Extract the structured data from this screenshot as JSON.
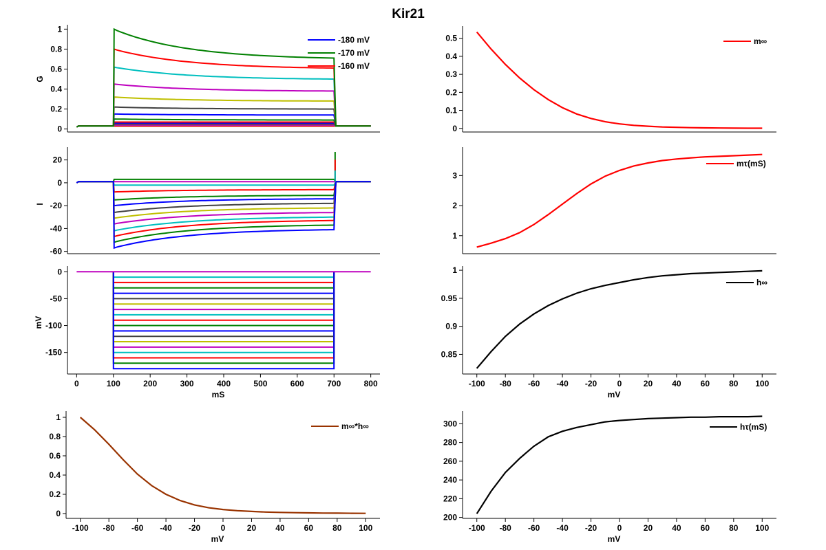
{
  "figure_title": "Kir21",
  "chart_data": [
    {
      "id": "G",
      "type": "line",
      "title": "",
      "xlabel": "",
      "ylabel": "G",
      "xlim": [
        -25,
        825
      ],
      "ylim": [
        -0.03,
        1.03
      ],
      "yticks": [
        0,
        0.2,
        0.4,
        0.6,
        0.8,
        1
      ],
      "ytick_labels": [
        "0",
        "0.2",
        "0.4",
        "0.6",
        "0.8",
        "1"
      ],
      "xticks": [],
      "grid": false,
      "legend": {
        "position": "top-right",
        "entries": [
          {
            "label": "-180 mV",
            "color": "#0000ff"
          },
          {
            "label": "-170 mV",
            "color": "#008000"
          },
          {
            "label": "-160 mV",
            "color": "#ff0000"
          }
        ]
      },
      "baseline": 0.03,
      "step_start_ms": 100,
      "step_end_ms": 700,
      "sweeps": [
        {
          "color": "#0000ff",
          "peak": 0.03,
          "end": 0.03
        },
        {
          "color": "#008000",
          "peak": 0.03,
          "end": 0.03
        },
        {
          "color": "#ff0000",
          "peak": 0.03,
          "end": 0.03
        },
        {
          "color": "#00bfbf",
          "peak": 0.04,
          "end": 0.04
        },
        {
          "color": "#bf00bf",
          "peak": 0.04,
          "end": 0.04
        },
        {
          "color": "#bfbf00",
          "peak": 0.05,
          "end": 0.05
        },
        {
          "color": "#404040",
          "peak": 0.05,
          "end": 0.05
        },
        {
          "color": "#0000ff",
          "peak": 0.06,
          "end": 0.06
        },
        {
          "color": "#ff0000",
          "peak": 0.07,
          "end": 0.07
        },
        {
          "color": "#008000",
          "peak": 0.1,
          "end": 0.09
        },
        {
          "color": "#0000ff",
          "peak": 0.15,
          "end": 0.14
        },
        {
          "color": "#404040",
          "peak": 0.22,
          "end": 0.2
        },
        {
          "color": "#bfbf00",
          "peak": 0.32,
          "end": 0.28
        },
        {
          "color": "#bf00bf",
          "peak": 0.45,
          "end": 0.38
        },
        {
          "color": "#00bfbf",
          "peak": 0.62,
          "end": 0.5
        },
        {
          "color": "#ff0000",
          "peak": 0.8,
          "end": 0.61
        },
        {
          "color": "#008000",
          "peak": 1.0,
          "end": 0.71
        }
      ]
    },
    {
      "id": "I",
      "type": "line",
      "xlabel": "",
      "ylabel": "I",
      "xlim": [
        -25,
        825
      ],
      "ylim": [
        -62,
        30
      ],
      "yticks": [
        -60,
        -40,
        -20,
        0,
        20
      ],
      "ytick_labels": [
        "-60",
        "-40",
        "-20",
        "0",
        "20"
      ],
      "xticks": [],
      "grid": false,
      "baseline": 1,
      "step_start_ms": 100,
      "step_end_ms": 700,
      "tail_spike_max": 27,
      "sweeps": [
        {
          "color": "#008000",
          "peak": 3,
          "end": 3
        },
        {
          "color": "#bf00bf",
          "peak": 1,
          "end": 1
        },
        {
          "color": "#00bfbf",
          "peak": -2,
          "end": -2
        },
        {
          "color": "#ff0000",
          "peak": -8,
          "end": -6
        },
        {
          "color": "#008000",
          "peak": -15,
          "end": -11
        },
        {
          "color": "#0000ff",
          "peak": -20,
          "end": -14
        },
        {
          "color": "#404040",
          "peak": -26,
          "end": -18
        },
        {
          "color": "#bfbf00",
          "peak": -31,
          "end": -22
        },
        {
          "color": "#bf00bf",
          "peak": -36,
          "end": -26
        },
        {
          "color": "#00bfbf",
          "peak": -42,
          "end": -30
        },
        {
          "color": "#ff0000",
          "peak": -47,
          "end": -33
        },
        {
          "color": "#008000",
          "peak": -52,
          "end": -37
        },
        {
          "color": "#0000ff",
          "peak": -57,
          "end": -41
        }
      ]
    },
    {
      "id": "V",
      "type": "line",
      "xlabel": "mS",
      "ylabel": "mV",
      "xlim": [
        -25,
        825
      ],
      "ylim": [
        -190,
        8
      ],
      "yticks": [
        -150,
        -100,
        -50,
        0
      ],
      "ytick_labels": [
        "-150",
        "-100",
        "-50",
        "0"
      ],
      "xticks": [
        0,
        100,
        200,
        300,
        400,
        500,
        600,
        700,
        800
      ],
      "xtick_labels": [
        "0",
        "100",
        "200",
        "300",
        "400",
        "500",
        "600",
        "700",
        "800"
      ],
      "grid": false,
      "holding": 0,
      "step_start_ms": 100,
      "step_end_ms": 700,
      "sim_end_ms": 800,
      "steps": [
        {
          "v": -10,
          "color": "#00bfbf"
        },
        {
          "v": -20,
          "color": "#ff0000"
        },
        {
          "v": -30,
          "color": "#008000"
        },
        {
          "v": -40,
          "color": "#0000ff"
        },
        {
          "v": -50,
          "color": "#404040"
        },
        {
          "v": -60,
          "color": "#bfbf00"
        },
        {
          "v": -70,
          "color": "#bf00bf"
        },
        {
          "v": -80,
          "color": "#00bfbf"
        },
        {
          "v": -90,
          "color": "#ff0000"
        },
        {
          "v": -100,
          "color": "#008000"
        },
        {
          "v": -110,
          "color": "#0000ff"
        },
        {
          "v": -120,
          "color": "#404040"
        },
        {
          "v": -130,
          "color": "#bfbf00"
        },
        {
          "v": -140,
          "color": "#bf00bf"
        },
        {
          "v": -150,
          "color": "#00bfbf"
        },
        {
          "v": -160,
          "color": "#ff0000"
        },
        {
          "v": -170,
          "color": "#008000"
        },
        {
          "v": -180,
          "color": "#0000ff"
        }
      ],
      "holding_color": "#bf00bf"
    },
    {
      "id": "minf_hinf",
      "type": "line",
      "xlabel": "mV",
      "ylabel": "",
      "xlim": [
        -110,
        110
      ],
      "ylim": [
        -0.05,
        1.05
      ],
      "yticks": [
        0,
        0.2,
        0.4,
        0.6,
        0.8,
        1
      ],
      "ytick_labels": [
        "0",
        "0.2",
        "0.4",
        "0.6",
        "0.8",
        "1"
      ],
      "xticks": [
        -100,
        -80,
        -60,
        -40,
        -20,
        0,
        20,
        40,
        60,
        80,
        100
      ],
      "xtick_labels": [
        "-100",
        "-80",
        "-60",
        "-40",
        "-20",
        "0",
        "20",
        "40",
        "60",
        "80",
        "100"
      ],
      "grid": false,
      "legend": {
        "position": "top-right",
        "entries": [
          {
            "label": "m∞*h∞",
            "color": "#993300"
          }
        ]
      },
      "x": [
        -100,
        -90,
        -80,
        -70,
        -60,
        -50,
        -40,
        -30,
        -20,
        -10,
        0,
        10,
        20,
        30,
        40,
        50,
        60,
        70,
        80,
        90,
        100
      ],
      "y": [
        1.0,
        0.87,
        0.72,
        0.56,
        0.41,
        0.29,
        0.2,
        0.135,
        0.09,
        0.06,
        0.042,
        0.03,
        0.022,
        0.016,
        0.012,
        0.009,
        0.007,
        0.005,
        0.004,
        0.003,
        0.002
      ]
    },
    {
      "id": "minf",
      "type": "line",
      "xlabel": "",
      "ylabel": "",
      "xlim": [
        -110,
        110
      ],
      "ylim": [
        -0.02,
        0.56
      ],
      "yticks": [
        0,
        0.1,
        0.2,
        0.3,
        0.4,
        0.5
      ],
      "ytick_labels": [
        "0",
        "0.1",
        "0.2",
        "0.3",
        "0.4",
        "0.5"
      ],
      "xticks": [],
      "grid": false,
      "legend": {
        "position": "top-right",
        "entries": [
          {
            "label": "m∞",
            "color": "#ff0000"
          }
        ]
      },
      "x": [
        -100,
        -90,
        -80,
        -70,
        -60,
        -50,
        -40,
        -30,
        -20,
        -10,
        0,
        10,
        20,
        30,
        40,
        50,
        60,
        70,
        80,
        90,
        100
      ],
      "y": [
        0.535,
        0.44,
        0.355,
        0.28,
        0.215,
        0.16,
        0.115,
        0.08,
        0.055,
        0.037,
        0.025,
        0.017,
        0.012,
        0.008,
        0.006,
        0.004,
        0.003,
        0.002,
        0.0015,
        0.001,
        0.001
      ]
    },
    {
      "id": "mtau",
      "type": "line",
      "xlabel": "",
      "ylabel": "",
      "xlim": [
        -110,
        110
      ],
      "ylim": [
        0.4,
        3.9
      ],
      "yticks": [
        1,
        2,
        3
      ],
      "ytick_labels": [
        "1",
        "2",
        "3"
      ],
      "xticks": [],
      "grid": false,
      "legend": {
        "position": "top-right",
        "entries": [
          {
            "label": "mτ(mS)",
            "color": "#ff0000"
          }
        ]
      },
      "x": [
        -100,
        -90,
        -80,
        -70,
        -60,
        -50,
        -40,
        -30,
        -20,
        -10,
        0,
        10,
        20,
        30,
        40,
        50,
        60,
        70,
        80,
        90,
        100
      ],
      "y": [
        0.62,
        0.75,
        0.9,
        1.1,
        1.37,
        1.7,
        2.05,
        2.4,
        2.72,
        2.98,
        3.17,
        3.32,
        3.42,
        3.5,
        3.55,
        3.59,
        3.62,
        3.64,
        3.66,
        3.68,
        3.7
      ]
    },
    {
      "id": "hinf",
      "type": "line",
      "xlabel": "mV",
      "ylabel": "",
      "xlim": [
        -110,
        110
      ],
      "ylim": [
        0.815,
        1.005
      ],
      "yticks": [
        0.85,
        0.9,
        0.95,
        1
      ],
      "ytick_labels": [
        "0.85",
        "0.9",
        "0.95",
        "1"
      ],
      "xticks": [
        -100,
        -80,
        -60,
        -40,
        -20,
        0,
        20,
        40,
        60,
        80,
        100
      ],
      "xtick_labels": [
        "-100",
        "-80",
        "-60",
        "-40",
        "-20",
        "0",
        "20",
        "40",
        "60",
        "80",
        "100"
      ],
      "grid": false,
      "legend": {
        "position": "top-right",
        "entries": [
          {
            "label": "h∞",
            "color": "#000000"
          }
        ]
      },
      "x": [
        -100,
        -90,
        -80,
        -70,
        -60,
        -50,
        -40,
        -30,
        -20,
        -10,
        0,
        10,
        20,
        30,
        40,
        50,
        60,
        70,
        80,
        90,
        100
      ],
      "y": [
        0.825,
        0.855,
        0.882,
        0.904,
        0.922,
        0.937,
        0.949,
        0.959,
        0.967,
        0.973,
        0.978,
        0.983,
        0.987,
        0.99,
        0.992,
        0.994,
        0.995,
        0.996,
        0.997,
        0.998,
        0.999
      ]
    },
    {
      "id": "htau",
      "type": "line",
      "xlabel": "mV",
      "ylabel": "",
      "xlim": [
        -110,
        110
      ],
      "ylim": [
        199,
        312
      ],
      "yticks": [
        200,
        220,
        240,
        260,
        280,
        300
      ],
      "ytick_labels": [
        "200",
        "220",
        "240",
        "260",
        "280",
        "300"
      ],
      "xticks": [
        -100,
        -80,
        -60,
        -40,
        -20,
        0,
        20,
        40,
        60,
        80,
        100
      ],
      "xtick_labels": [
        "-100",
        "-80",
        "-60",
        "-40",
        "-20",
        "0",
        "20",
        "40",
        "60",
        "80",
        "100"
      ],
      "grid": false,
      "legend": {
        "position": "top-right",
        "entries": [
          {
            "label": "hτ(mS)",
            "color": "#000000"
          }
        ]
      },
      "x": [
        -100,
        -90,
        -80,
        -70,
        -60,
        -50,
        -40,
        -30,
        -20,
        -10,
        0,
        10,
        20,
        30,
        40,
        50,
        60,
        70,
        80,
        90,
        100
      ],
      "y": [
        204,
        228,
        248,
        263,
        276,
        286,
        292,
        296,
        299,
        302,
        303.5,
        304.5,
        305.5,
        306,
        306.5,
        307,
        307,
        307.5,
        307.5,
        307.5,
        308
      ]
    }
  ]
}
